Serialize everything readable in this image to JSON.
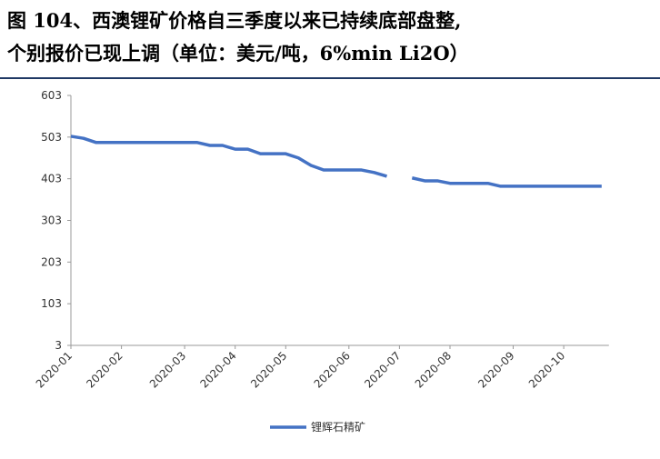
{
  "chart_data": {
    "type": "line",
    "title": "图 104、西澳锂矿价格自三季度以来已持续底部盘整,",
    "subtitle": "个别报价已现上调（单位：美元/吨，6%min Li2O）",
    "categories": [
      "2020-01",
      null,
      null,
      null,
      "2020-02",
      null,
      null,
      null,
      null,
      "2020-03",
      null,
      null,
      null,
      "2020-04",
      null,
      null,
      null,
      "2020-05",
      null,
      null,
      null,
      null,
      "2020-06",
      null,
      null,
      null,
      "2020-07",
      null,
      null,
      null,
      "2020-08",
      null,
      null,
      null,
      null,
      "2020-09",
      null,
      null,
      null,
      "2020-10",
      null,
      null,
      null
    ],
    "series": [
      {
        "name": "锂辉石精矿",
        "color": "#4472c4",
        "values": [
          505,
          500,
          490,
          490,
          490,
          490,
          490,
          490,
          490,
          490,
          490,
          483,
          483,
          474,
          474,
          463,
          463,
          463,
          453,
          435,
          424,
          424,
          424,
          424,
          418,
          409,
          null,
          405,
          398,
          398,
          392,
          392,
          392,
          392,
          385,
          385,
          385,
          385,
          385,
          385,
          385,
          385,
          385
        ]
      }
    ],
    "ylim": [
      3,
      603
    ],
    "yticks": [
      3,
      103,
      203,
      303,
      403,
      503,
      603
    ],
    "grid": false,
    "legend": "bottom"
  }
}
